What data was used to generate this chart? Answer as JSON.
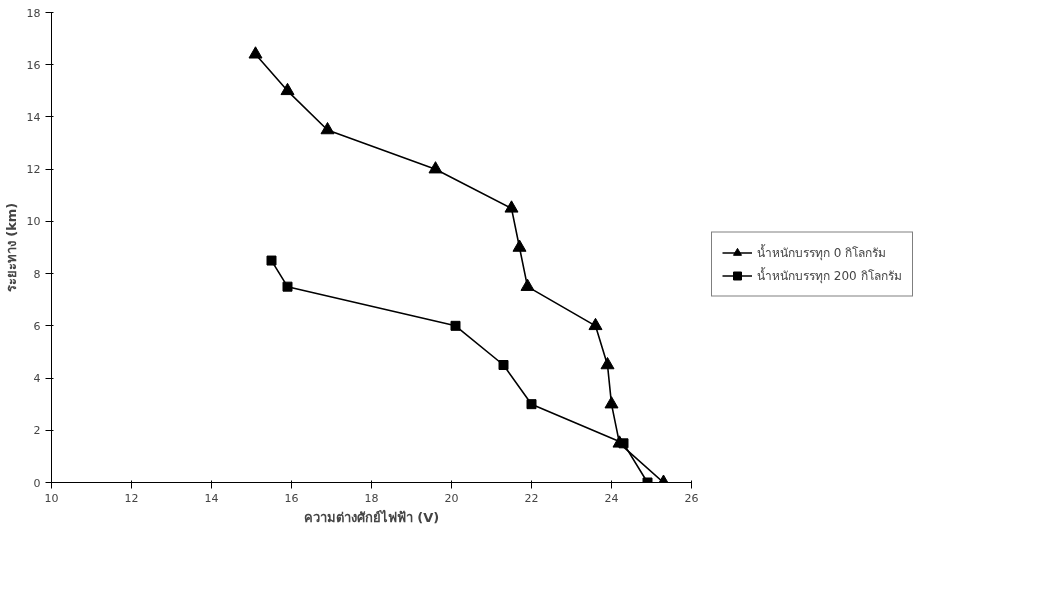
{
  "chart_data": {
    "type": "line",
    "xlabel": "ความต่างศักย์ไฟฟ้า (V)",
    "ylabel": "ระยะทาง (km)",
    "xlim": [
      10,
      26
    ],
    "xticks": [
      10,
      12,
      14,
      16,
      18,
      20,
      22,
      24,
      26
    ],
    "ylim": [
      0,
      18
    ],
    "yticks": [
      0,
      2,
      4,
      6,
      8,
      10,
      12,
      14,
      16,
      18
    ],
    "grid": false,
    "legend": "right",
    "series": [
      {
        "name": "น้ำหนักบรรทุก 0 กิโลกรัม",
        "color": "#000000",
        "marker": "triangle",
        "x": [
          15.1,
          15.9,
          16.9,
          19.6,
          21.5,
          21.7,
          21.9,
          23.6,
          23.9,
          24.0,
          24.2,
          25.3
        ],
        "values": [
          16.4,
          15,
          13.5,
          12,
          10.5,
          9,
          7.5,
          6,
          4.5,
          3,
          1.5,
          0
        ]
      },
      {
        "name": "น้ำหนักบรรทุก 200 กิโลกรัม",
        "color": "#000000",
        "marker": "square",
        "x": [
          15.5,
          15.9,
          20.1,
          21.3,
          22.0,
          24.3,
          24.9
        ],
        "values": [
          8.5,
          7.5,
          6,
          4.5,
          3,
          1.5,
          0
        ]
      }
    ]
  }
}
